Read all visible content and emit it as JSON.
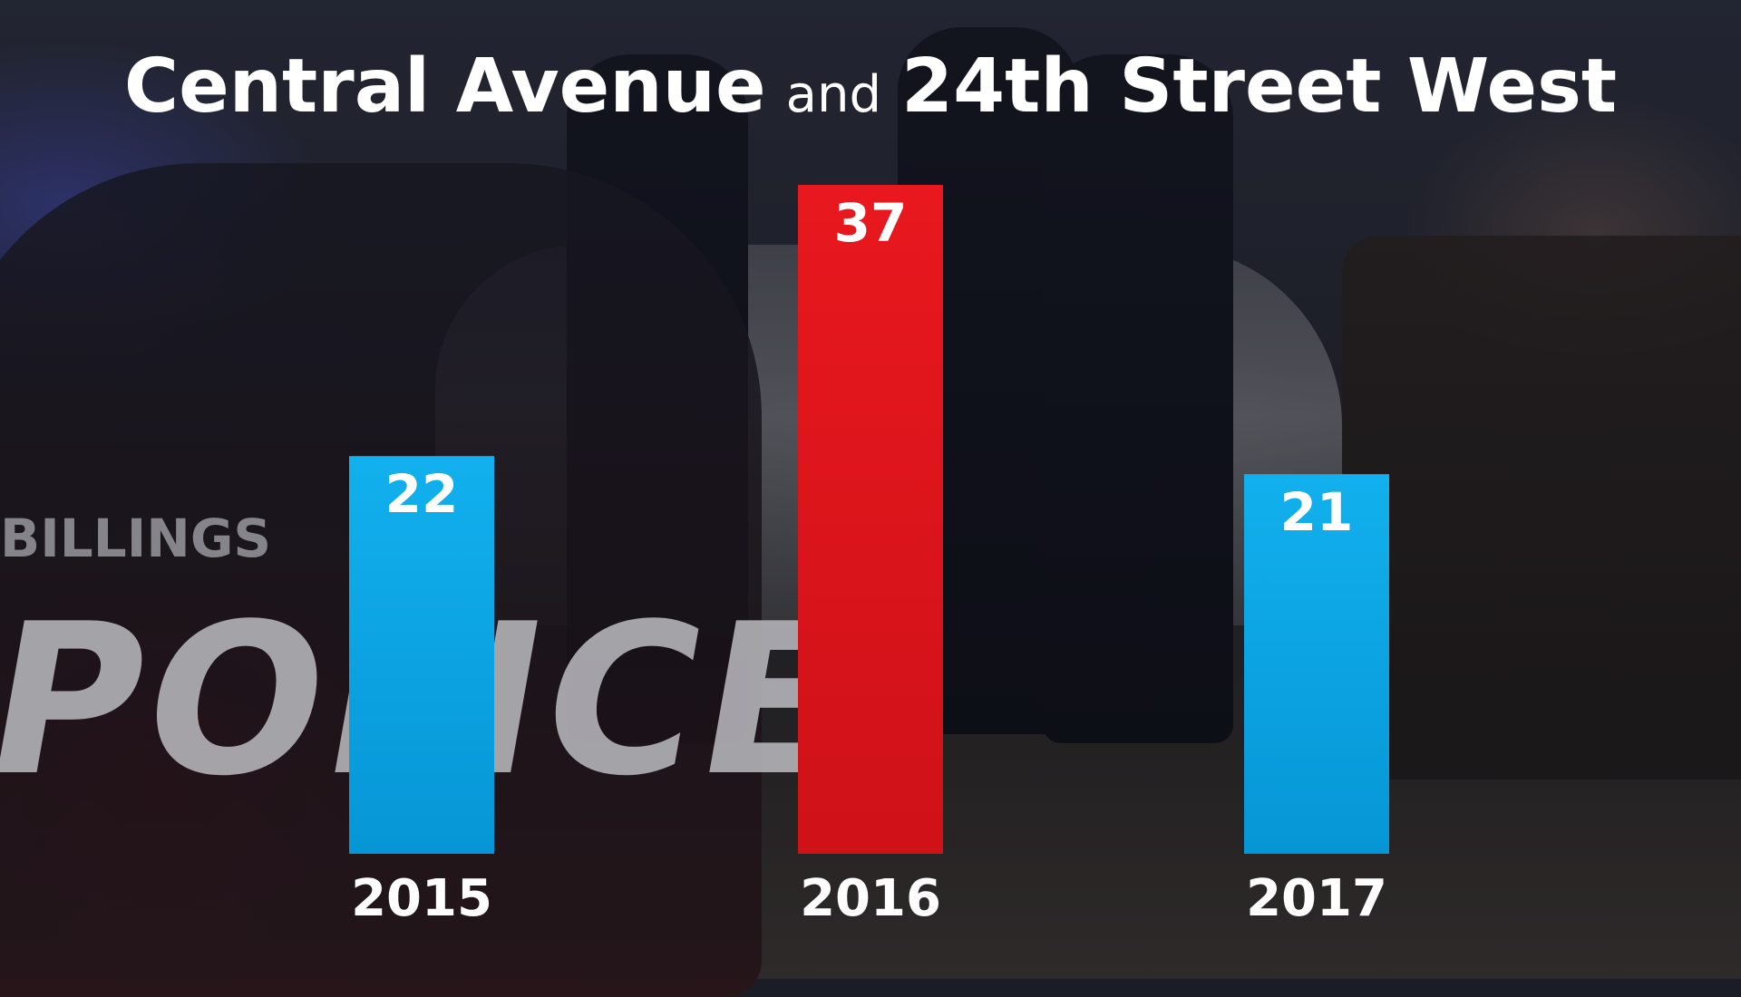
{
  "title": {
    "part1": "Central Avenue",
    "connector": "and",
    "part2": "24th Street West"
  },
  "background": {
    "billings_text": "BILLINGS",
    "police_text": "POLICE"
  },
  "colors": {
    "default_bar": "#0aa5e6",
    "highlight_bar": "#e1161d",
    "text": "#ffffff"
  },
  "chart_data": {
    "type": "bar",
    "categories": [
      "2015",
      "2016",
      "2017"
    ],
    "values": [
      22,
      37,
      21
    ],
    "highlight_index": 1,
    "ylim": [
      0,
      37
    ],
    "grid": false,
    "legend": "none"
  }
}
